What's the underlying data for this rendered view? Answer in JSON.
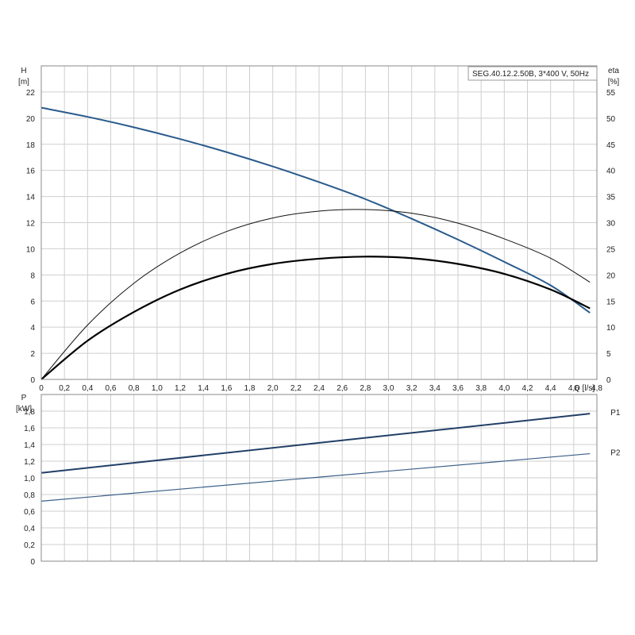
{
  "chart_data": [
    {
      "type": "line",
      "title": "SEG.40.12.2.50B, 3*400 V, 50Hz",
      "xlabel": "Q [l/s]",
      "ylabel_left": "H",
      "ylabel_left_unit": "[m]",
      "ylabel_right": "eta",
      "ylabel_right_unit": "[%]",
      "xlim": [
        0,
        4.8
      ],
      "ylim_left": [
        0,
        24
      ],
      "ylim_right": [
        0,
        60
      ],
      "grid": true,
      "x_ticks": [
        "0",
        "0,2",
        "0,4",
        "0,6",
        "0,8",
        "1,0",
        "1,2",
        "1,4",
        "1,6",
        "1,8",
        "2,0",
        "2,2",
        "2,4",
        "2,6",
        "2,8",
        "3,0",
        "3,2",
        "3,4",
        "3,6",
        "3,8",
        "4,0",
        "4,2",
        "4,4",
        "4,6",
        "4,8"
      ],
      "y_left_ticks": [
        "0",
        "2",
        "4",
        "6",
        "8",
        "10",
        "12",
        "14",
        "16",
        "18",
        "20",
        "22"
      ],
      "y_right_ticks": [
        "0",
        "5",
        "10",
        "15",
        "20",
        "25",
        "30",
        "35",
        "40",
        "45",
        "50",
        "55"
      ],
      "series": [
        {
          "axis": "left",
          "color": "#2a5b8c",
          "x": [
            0,
            0.4,
            0.8,
            1.2,
            1.6,
            2.0,
            2.4,
            2.8,
            3.2,
            3.6,
            4.0,
            4.4,
            4.74
          ],
          "values": [
            20.8,
            20.1,
            19.3,
            18.4,
            17.4,
            16.3,
            15.1,
            13.8,
            12.3,
            10.7,
            9.0,
            7.2,
            5.1
          ]
        },
        {
          "axis": "right",
          "color": "#111111",
          "x": [
            0,
            0.4,
            0.8,
            1.2,
            1.6,
            2.0,
            2.4,
            2.8,
            3.2,
            3.6,
            4.0,
            4.4,
            4.74
          ],
          "values": [
            0,
            10.4,
            18.4,
            24.2,
            28.3,
            30.9,
            32.2,
            32.5,
            31.8,
            29.9,
            26.9,
            23.2,
            18.6
          ]
        },
        {
          "axis": "right",
          "color": "#000000",
          "x": [
            0,
            0.4,
            0.8,
            1.2,
            1.6,
            2.0,
            2.4,
            2.8,
            3.2,
            3.6,
            4.0,
            4.4,
            4.74
          ],
          "values": [
            0,
            7.4,
            12.9,
            17.2,
            20.2,
            22.1,
            23.1,
            23.5,
            23.2,
            22.1,
            20.2,
            17.2,
            13.6
          ]
        }
      ]
    },
    {
      "type": "line",
      "xlabel": "",
      "ylabel": "P",
      "ylabel_unit": "[kW]",
      "xlim": [
        0,
        4.8
      ],
      "ylim": [
        0,
        2.0
      ],
      "grid": true,
      "y_ticks": [
        "0",
        "0,2",
        "0,4",
        "0,6",
        "0,8",
        "1,0",
        "1,2",
        "1,4",
        "1,6",
        "1,8"
      ],
      "series": [
        {
          "name": "P1",
          "color": "#223f66",
          "x": [
            0,
            4.74
          ],
          "values": [
            1.06,
            1.77
          ]
        },
        {
          "name": "P2",
          "color": "#3a5f88",
          "x": [
            0,
            4.74
          ],
          "values": [
            0.72,
            1.29
          ]
        }
      ]
    }
  ]
}
